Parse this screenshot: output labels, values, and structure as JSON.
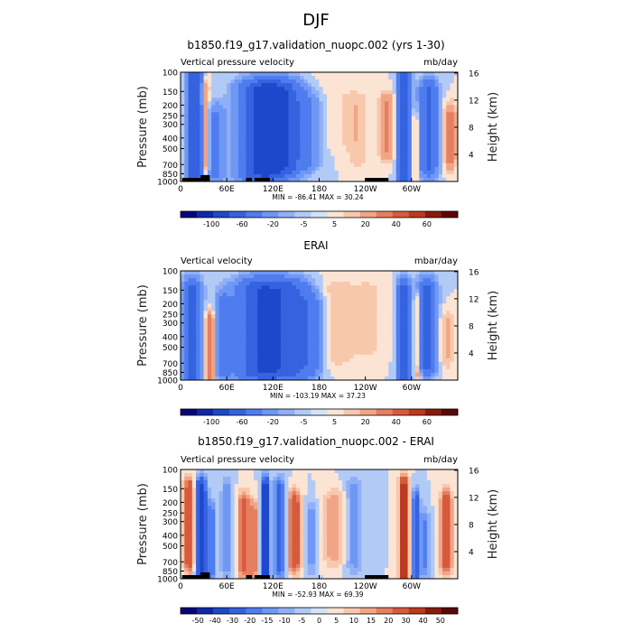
{
  "figure": {
    "title": "DJF"
  },
  "chart_data": [
    {
      "type": "heatmap",
      "title": "b1850.f19_g17.validation_nuopc.002 (yrs 1-30)",
      "left_label": "Vertical pressure velocity",
      "right_label": "mb/day",
      "ylabel": "Pressure (mb)",
      "y2label": "Height (km)",
      "x_ticks": [
        "0",
        "60E",
        "120E",
        "180",
        "120W",
        "60W"
      ],
      "x_tick_values": [
        0,
        60,
        120,
        180,
        240,
        300
      ],
      "xlim": [
        0,
        360
      ],
      "y_ticks": [
        "100",
        "150",
        "200",
        "250",
        "300",
        "400",
        "500",
        "700",
        "850",
        "1000"
      ],
      "y_tick_values": [
        100,
        150,
        200,
        250,
        300,
        400,
        500,
        700,
        850,
        1000
      ],
      "ylim": [
        1000,
        100
      ],
      "y2_ticks": [
        "4",
        "8",
        "12",
        "16"
      ],
      "stats": "MIN = -86.41   MAX =  30.24",
      "colorbar": {
        "labels": [
          "-100",
          "-60",
          "-20",
          "-5",
          "5",
          "20",
          "40",
          "60"
        ],
        "colors": [
          "#08057a",
          "#0c2aa8",
          "#1e48cc",
          "#3563e0",
          "#4f7cee",
          "#6f98f4",
          "#90b0f6",
          "#b2caf6",
          "#d2e2f8",
          "#fbe4d4",
          "#f8c8ac",
          "#f1a586",
          "#e57f60",
          "#d65a3c",
          "#bb3a20",
          "#8c1a0c",
          "#5a0800"
        ]
      },
      "features": [
        {
          "x": 18,
          "p": [
            100,
            1000
          ],
          "v": -55,
          "w": 10
        },
        {
          "x": 33,
          "p": [
            150,
            700
          ],
          "v": 26,
          "w": 4
        },
        {
          "x": 45,
          "p": [
            250,
            850
          ],
          "v": -22,
          "w": 12
        },
        {
          "x": 65,
          "p": [
            200,
            700
          ],
          "v": 4,
          "w": 8
        },
        {
          "x": 105,
          "p": [
            150,
            800
          ],
          "v": -65,
          "w": 30
        },
        {
          "x": 135,
          "p": [
            150,
            700
          ],
          "v": -40,
          "w": 25
        },
        {
          "x": 165,
          "p": [
            200,
            600
          ],
          "v": -18,
          "w": 18
        },
        {
          "x": 205,
          "p": [
            100,
            400
          ],
          "v": 4,
          "w": 30
        },
        {
          "x": 230,
          "p": [
            200,
            600
          ],
          "v": 8,
          "w": 15
        },
        {
          "x": 268,
          "p": [
            200,
            500
          ],
          "v": 22,
          "w": 10
        },
        {
          "x": 290,
          "p": [
            100,
            900
          ],
          "v": -58,
          "w": 8
        },
        {
          "x": 305,
          "p": [
            300,
            800
          ],
          "v": 15,
          "w": 5
        },
        {
          "x": 322,
          "p": [
            150,
            700
          ],
          "v": -45,
          "w": 12
        },
        {
          "x": 350,
          "p": [
            250,
            600
          ],
          "v": 25,
          "w": 8
        }
      ]
    },
    {
      "type": "heatmap",
      "title": "ERAI",
      "left_label": "Vertical velocity",
      "right_label": "mbar/day",
      "ylabel": "Pressure (mb)",
      "y2label": "Height (km)",
      "x_ticks": [
        "0",
        "60E",
        "120E",
        "180",
        "120W",
        "60W"
      ],
      "x_tick_values": [
        0,
        60,
        120,
        180,
        240,
        300
      ],
      "xlim": [
        0,
        360
      ],
      "y_ticks": [
        "100",
        "150",
        "200",
        "250",
        "300",
        "400",
        "500",
        "700",
        "850",
        "1000"
      ],
      "y_tick_values": [
        100,
        150,
        200,
        250,
        300,
        400,
        500,
        700,
        850,
        1000
      ],
      "ylim": [
        1000,
        100
      ],
      "y2_ticks": [
        "4",
        "8",
        "12",
        "16"
      ],
      "stats": "MIN = -103.19   MAX =  37.23",
      "colorbar": {
        "labels": [
          "-100",
          "-60",
          "-20",
          "-5",
          "5",
          "20",
          "40",
          "60"
        ],
        "colors": [
          "#08057a",
          "#0c2aa8",
          "#1e48cc",
          "#3563e0",
          "#4f7cee",
          "#6f98f4",
          "#90b0f6",
          "#b2caf6",
          "#d2e2f8",
          "#fbe4d4",
          "#f8c8ac",
          "#f1a586",
          "#e57f60",
          "#d65a3c",
          "#bb3a20",
          "#8c1a0c",
          "#5a0800"
        ]
      },
      "features": [
        {
          "x": 15,
          "p": [
            150,
            1000
          ],
          "v": -45,
          "w": 12
        },
        {
          "x": 38,
          "p": [
            300,
            900
          ],
          "v": 30,
          "w": 6
        },
        {
          "x": 55,
          "p": [
            200,
            800
          ],
          "v": -22,
          "w": 10
        },
        {
          "x": 100,
          "p": [
            150,
            800
          ],
          "v": -55,
          "w": 30
        },
        {
          "x": 140,
          "p": [
            150,
            800
          ],
          "v": -45,
          "w": 28
        },
        {
          "x": 170,
          "p": [
            200,
            700
          ],
          "v": -22,
          "w": 15
        },
        {
          "x": 200,
          "p": [
            150,
            600
          ],
          "v": 8,
          "w": 25
        },
        {
          "x": 245,
          "p": [
            150,
            500
          ],
          "v": 6,
          "w": 25
        },
        {
          "x": 290,
          "p": [
            150,
            900
          ],
          "v": -55,
          "w": 8
        },
        {
          "x": 308,
          "p": [
            200,
            800
          ],
          "v": 22,
          "w": 5
        },
        {
          "x": 320,
          "p": [
            150,
            700
          ],
          "v": -50,
          "w": 12
        },
        {
          "x": 345,
          "p": [
            300,
            600
          ],
          "v": 12,
          "w": 10
        }
      ]
    },
    {
      "type": "heatmap",
      "title": "b1850.f19_g17.validation_nuopc.002 - ERAI",
      "left_label": "Vertical pressure velocity",
      "right_label": "mb/day",
      "ylabel": "Pressure (mb)",
      "y2label": "Height (km)",
      "x_ticks": [
        "0",
        "60E",
        "120E",
        "180",
        "120W",
        "60W"
      ],
      "x_tick_values": [
        0,
        60,
        120,
        180,
        240,
        300
      ],
      "xlim": [
        0,
        360
      ],
      "y_ticks": [
        "100",
        "150",
        "200",
        "250",
        "300",
        "400",
        "500",
        "700",
        "850",
        "1000"
      ],
      "y_tick_values": [
        100,
        150,
        200,
        250,
        300,
        400,
        500,
        700,
        850,
        1000
      ],
      "ylim": [
        1000,
        100
      ],
      "y2_ticks": [
        "4",
        "8",
        "12",
        "16"
      ],
      "stats": "MIN = -52.93   MAX =  69.39",
      "colorbar": {
        "labels": [
          "-50",
          "-40",
          "-30",
          "-20",
          "-15",
          "-10",
          "-5",
          "0",
          "5",
          "10",
          "15",
          "20",
          "30",
          "40",
          "50"
        ],
        "colors": [
          "#08057a",
          "#0c2aa8",
          "#1e48cc",
          "#3563e0",
          "#4f7cee",
          "#6f98f4",
          "#90b0f6",
          "#b2caf6",
          "#d2e2f8",
          "#fbe4d4",
          "#f8c8ac",
          "#f1a586",
          "#e57f60",
          "#d65a3c",
          "#bb3a20",
          "#8c1a0c",
          "#5a0800"
        ]
      },
      "features": [
        {
          "x": 12,
          "p": [
            150,
            700
          ],
          "v": 28,
          "w": 8
        },
        {
          "x": 26,
          "p": [
            150,
            1000
          ],
          "v": -38,
          "w": 8
        },
        {
          "x": 40,
          "p": [
            250,
            900
          ],
          "v": -18,
          "w": 6
        },
        {
          "x": 60,
          "p": [
            150,
            800
          ],
          "v": -12,
          "w": 8
        },
        {
          "x": 82,
          "p": [
            200,
            800
          ],
          "v": 22,
          "w": 8
        },
        {
          "x": 95,
          "p": [
            250,
            800
          ],
          "v": 18,
          "w": 6
        },
        {
          "x": 110,
          "p": [
            150,
            900
          ],
          "v": -45,
          "w": 5
        },
        {
          "x": 128,
          "p": [
            150,
            800
          ],
          "v": -22,
          "w": 8
        },
        {
          "x": 148,
          "p": [
            200,
            700
          ],
          "v": 28,
          "w": 8
        },
        {
          "x": 170,
          "p": [
            250,
            700
          ],
          "v": -12,
          "w": 8
        },
        {
          "x": 200,
          "p": [
            200,
            600
          ],
          "v": 14,
          "w": 15
        },
        {
          "x": 225,
          "p": [
            150,
            700
          ],
          "v": -12,
          "w": 12
        },
        {
          "x": 290,
          "p": [
            150,
            950
          ],
          "v": 45,
          "w": 6
        },
        {
          "x": 306,
          "p": [
            200,
            900
          ],
          "v": -30,
          "w": 5
        },
        {
          "x": 318,
          "p": [
            300,
            800
          ],
          "v": -15,
          "w": 6
        },
        {
          "x": 345,
          "p": [
            200,
            700
          ],
          "v": 28,
          "w": 8
        }
      ]
    }
  ]
}
